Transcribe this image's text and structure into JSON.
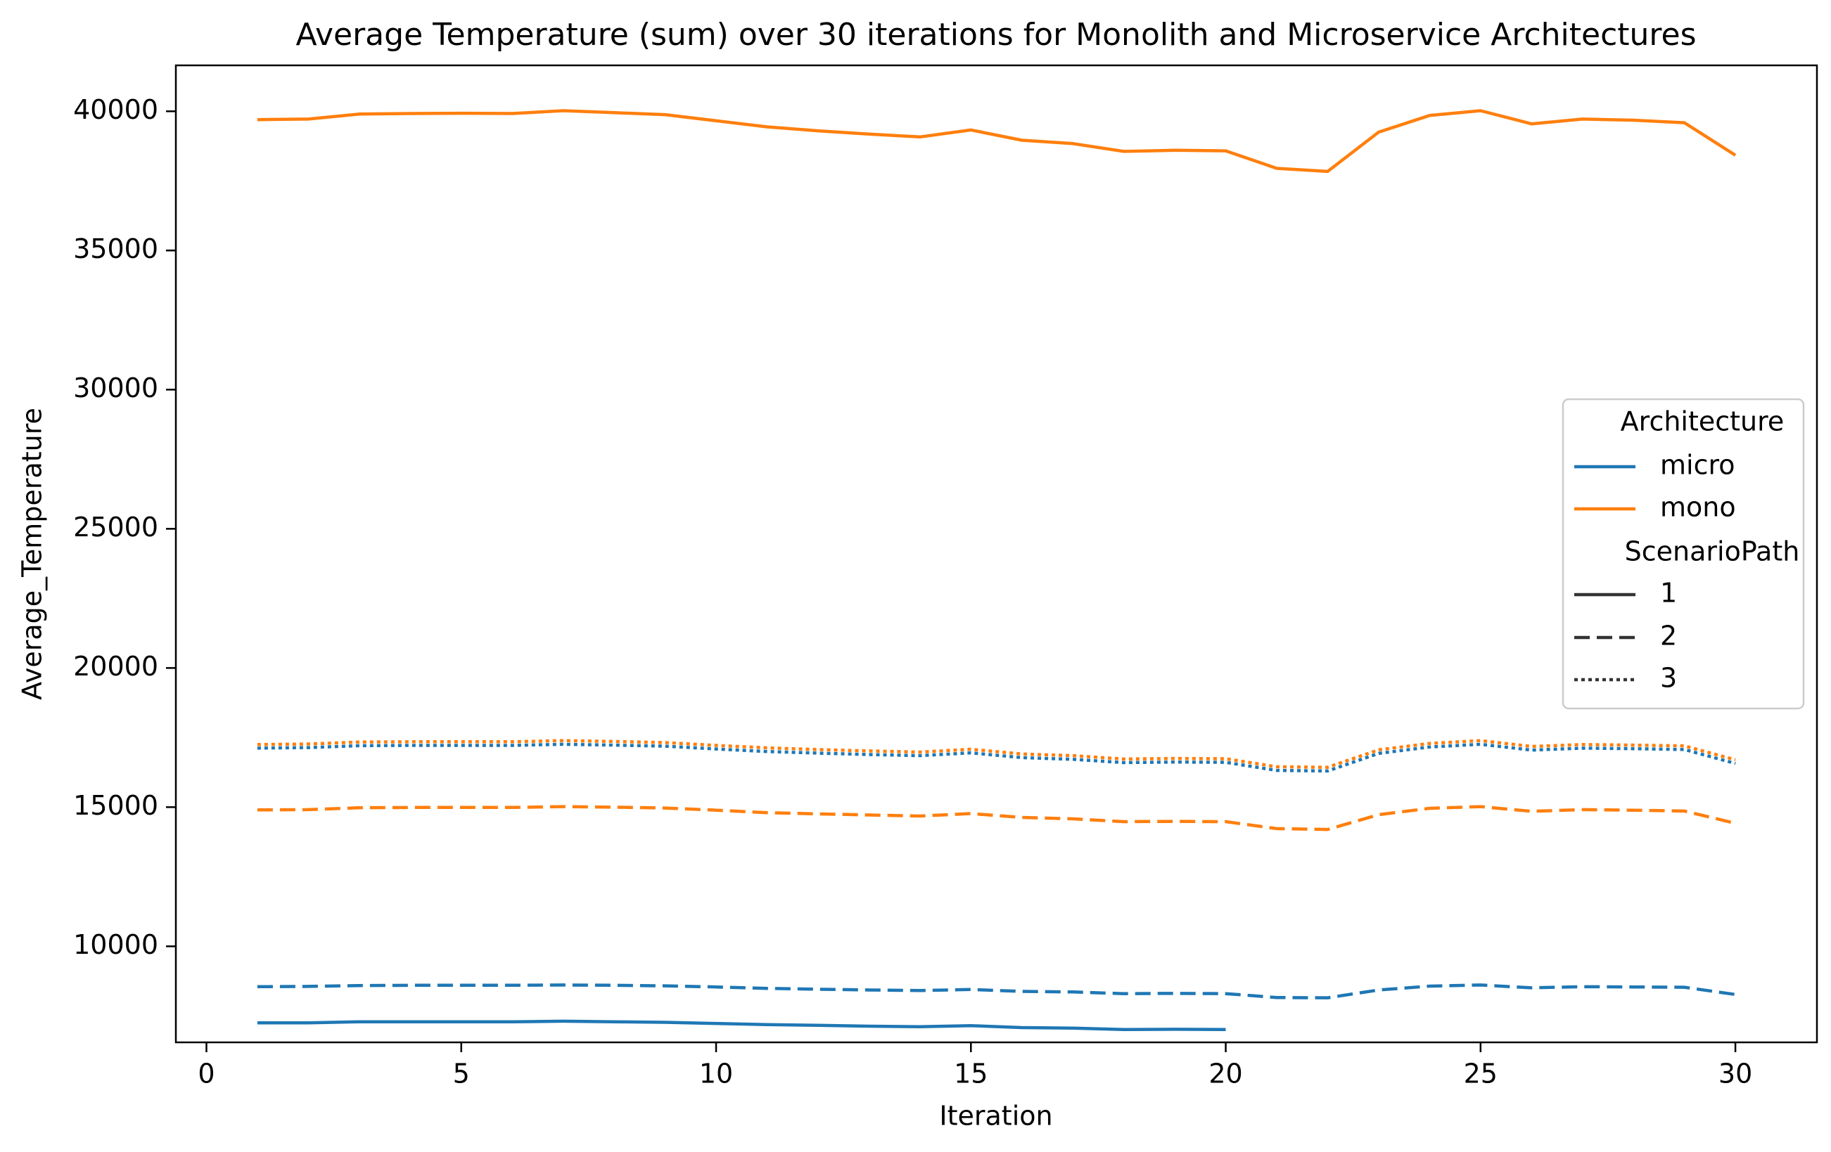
{
  "chart_data": {
    "type": "line",
    "title": "Average Temperature (sum) over 30 iterations for Monolith and Microservice Architectures",
    "xlabel": "Iteration",
    "ylabel": "Average_Temperature",
    "xlim": [
      -0.6,
      31.6
    ],
    "ylim": [
      6550,
      41650
    ],
    "xticks": [
      0,
      5,
      10,
      15,
      20,
      25,
      30
    ],
    "yticks": [
      10000,
      15000,
      20000,
      25000,
      30000,
      35000,
      40000
    ],
    "grid": false,
    "legend": {
      "placement": "center-right",
      "hue_title": "Architecture",
      "hue_entries": [
        {
          "label": "micro",
          "color": "#1f77b4"
        },
        {
          "label": "mono",
          "color": "#ff7f0e"
        }
      ],
      "style_title": "ScenarioPath",
      "style_entries": [
        {
          "label": "1",
          "dash": "solid"
        },
        {
          "label": "2",
          "dash": "dashed"
        },
        {
          "label": "3",
          "dash": "dotted"
        }
      ]
    },
    "series": [
      {
        "architecture": "mono",
        "scenario_path": "1",
        "color": "#ff7f0e",
        "dash": "solid",
        "x": [
          1,
          2,
          3,
          4,
          5,
          6,
          7,
          8,
          9,
          10,
          11,
          12,
          13,
          14,
          15,
          16,
          17,
          18,
          19,
          20,
          21,
          22,
          23,
          24,
          25,
          26,
          27,
          28,
          29,
          30
        ],
        "values": [
          39700,
          39720,
          39900,
          39920,
          39930,
          39920,
          40020,
          39950,
          39880,
          39660,
          39440,
          39300,
          39180,
          39080,
          39330,
          38960,
          38840,
          38560,
          38600,
          38580,
          37950,
          37840,
          39250,
          39850,
          40020,
          39550,
          39720,
          39680,
          39590,
          38420
        ]
      },
      {
        "architecture": "mono",
        "scenario_path": "2",
        "color": "#ff7f0e",
        "dash": "dashed",
        "x": [
          1,
          2,
          3,
          4,
          5,
          6,
          7,
          8,
          9,
          10,
          11,
          12,
          13,
          14,
          15,
          16,
          17,
          18,
          19,
          20,
          21,
          22,
          23,
          24,
          25,
          26,
          27,
          28,
          29,
          30
        ],
        "values": [
          14900,
          14910,
          14980,
          14990,
          14990,
          14990,
          15020,
          15000,
          14970,
          14890,
          14800,
          14760,
          14720,
          14680,
          14770,
          14630,
          14580,
          14480,
          14490,
          14480,
          14230,
          14200,
          14730,
          14960,
          15020,
          14850,
          14910,
          14890,
          14860,
          14420
        ]
      },
      {
        "architecture": "mono",
        "scenario_path": "3",
        "color": "#ff7f0e",
        "dash": "dotted",
        "x": [
          1,
          2,
          3,
          4,
          5,
          6,
          7,
          8,
          9,
          10,
          11,
          12,
          13,
          14,
          15,
          16,
          17,
          18,
          19,
          20,
          21,
          22,
          23,
          24,
          25,
          26,
          27,
          28,
          29,
          30
        ],
        "values": [
          17250,
          17270,
          17340,
          17350,
          17350,
          17350,
          17390,
          17360,
          17320,
          17220,
          17130,
          17070,
          17020,
          16980,
          17080,
          16910,
          16850,
          16730,
          16750,
          16740,
          16450,
          16430,
          17060,
          17290,
          17390,
          17180,
          17250,
          17230,
          17200,
          16700
        ]
      },
      {
        "architecture": "micro",
        "scenario_path": "1",
        "color": "#1f77b4",
        "dash": "solid",
        "x": [
          1,
          2,
          3,
          4,
          5,
          6,
          7,
          8,
          9,
          10,
          11,
          12,
          13,
          14,
          15,
          16,
          17,
          18,
          19,
          20
        ],
        "values": [
          7250,
          7250,
          7290,
          7290,
          7290,
          7290,
          7310,
          7290,
          7270,
          7230,
          7190,
          7160,
          7130,
          7110,
          7150,
          7080,
          7060,
          7010,
          7020,
          7010
        ]
      },
      {
        "architecture": "micro",
        "scenario_path": "2",
        "color": "#1f77b4",
        "dash": "dashed",
        "x": [
          1,
          2,
          3,
          4,
          5,
          6,
          7,
          8,
          9,
          10,
          11,
          12,
          13,
          14,
          15,
          16,
          17,
          18,
          19,
          20,
          21,
          22,
          23,
          24,
          25,
          26,
          27,
          28,
          29,
          30
        ],
        "values": [
          8550,
          8560,
          8590,
          8600,
          8600,
          8600,
          8610,
          8600,
          8580,
          8540,
          8490,
          8460,
          8430,
          8410,
          8450,
          8380,
          8360,
          8300,
          8310,
          8300,
          8160,
          8150,
          8430,
          8570,
          8610,
          8510,
          8550,
          8540,
          8530,
          8270
        ]
      },
      {
        "architecture": "micro",
        "scenario_path": "3",
        "color": "#1f77b4",
        "dash": "dotted",
        "x": [
          1,
          2,
          3,
          4,
          5,
          6,
          7,
          8,
          9,
          10,
          11,
          12,
          13,
          14,
          15,
          16,
          17,
          18,
          19,
          20,
          21,
          22,
          23,
          24,
          25,
          26,
          27,
          28,
          29,
          30
        ],
        "values": [
          17120,
          17140,
          17210,
          17220,
          17220,
          17220,
          17260,
          17230,
          17190,
          17090,
          17000,
          16940,
          16890,
          16850,
          16950,
          16780,
          16720,
          16600,
          16620,
          16610,
          16320,
          16300,
          16930,
          17160,
          17260,
          17050,
          17120,
          17100,
          17070,
          16570
        ]
      }
    ]
  }
}
